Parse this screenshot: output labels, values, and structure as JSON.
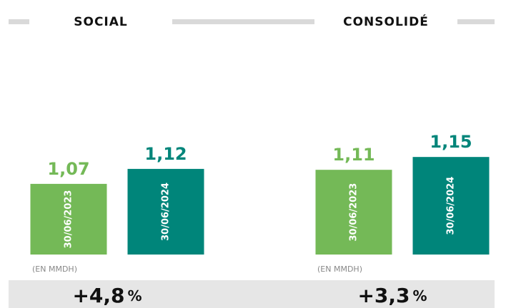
{
  "chart_data": [
    {
      "type": "bar",
      "title": "SOCIAL",
      "categories": [
        "30/06/2023",
        "30/06/2024"
      ],
      "values": [
        1.07,
        1.12
      ],
      "value_labels": [
        "1,07",
        "1,12"
      ],
      "colors": [
        "#74b957",
        "#00857a"
      ],
      "ylim": [
        0.834,
        1.446
      ],
      "unit_label": "(EN MMDH)",
      "change": "+4,8",
      "change_unit": "%"
    },
    {
      "type": "bar",
      "title": "CONSOLIDÉ",
      "categories": [
        "30/06/2023",
        "30/06/2024"
      ],
      "values": [
        1.11,
        1.15
      ],
      "value_labels": [
        "1,11",
        "1,15"
      ],
      "colors": [
        "#74b957",
        "#00857a"
      ],
      "ylim": [
        0.846,
        1.417
      ],
      "unit_label": "(EN MMDH)",
      "change": "+3,3",
      "change_unit": "%"
    }
  ]
}
